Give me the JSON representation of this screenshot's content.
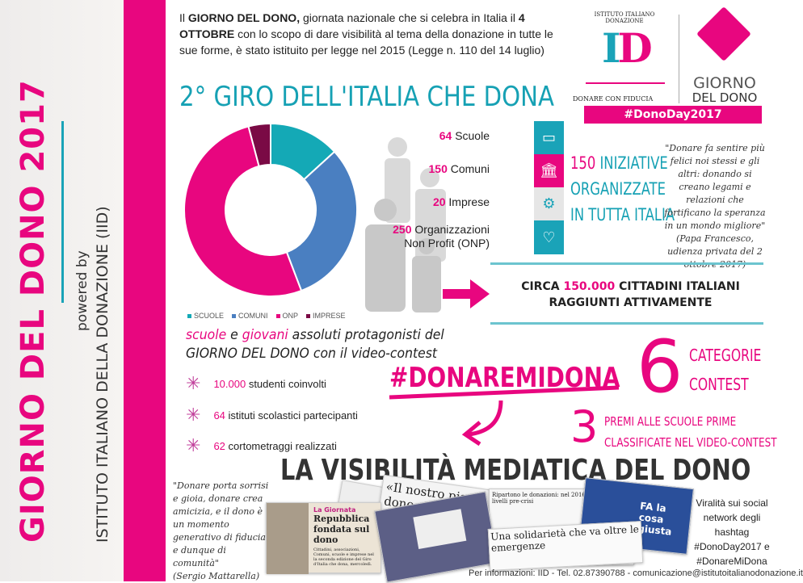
{
  "sidebar": {
    "title": "GIORNO DEL DONO 2017",
    "powered_by": "powered by",
    "institute": "ISTITUTO ITALIANO DELLA DONAZIONE (IID)"
  },
  "intro": {
    "p1": "Il ",
    "b1": "GIORNO DEL DONO,",
    "p2": " giornata nazionale che si celebra in Italia il ",
    "b2": "4 OTTOBRE",
    "p3": " con lo scopo di dare visibilità al tema della donazione in tutte le sue forme, è stato istituito per legge nel 2015 (Legge n. 110 del 14 luglio)"
  },
  "logo": {
    "arc_text": "ISTITUTO ITALIANO DONAZIONE",
    "mark": "ID",
    "tagline": "DONARE CON FIDUCIA",
    "giorno": "GIORNO",
    "del_dono": "DEL DONO",
    "hashtag": "#DonoDay2017"
  },
  "heading": "2° GIRO DELL'ITALIA CHE DONA",
  "chart_data": {
    "type": "pie",
    "donut": true,
    "categories": [
      "SCUOLE",
      "COMUNI",
      "ONP",
      "IMPRESE"
    ],
    "values": [
      64,
      150,
      250,
      20
    ],
    "colors": [
      "#14a9b6",
      "#4a7fc1",
      "#e8067f",
      "#7a0a45"
    ],
    "legend": "bottom"
  },
  "counts": [
    {
      "num": "64",
      "label": "Scuole"
    },
    {
      "num": "150",
      "label": "Comuni"
    },
    {
      "num": "20",
      "label": "Imprese"
    },
    {
      "num": "250",
      "label": "Organizzazioni",
      "label2": "Non Profit (ONP)"
    }
  ],
  "tiles": [
    {
      "icon": "book-icon",
      "color": "#1aa3b8"
    },
    {
      "icon": "bank-icon",
      "color": "#e8067f"
    },
    {
      "icon": "gears-icon",
      "color": "#e6e6e6"
    },
    {
      "icon": "heart-icon",
      "color": "#1aa3b8"
    }
  ],
  "iniziative": {
    "num": "150",
    "l1": " INIZIATIVE",
    "l2": "ORGANIZZATE",
    "l3": "IN TUTTA ITALIA"
  },
  "quote_pope": {
    "text": "\"Donare fa sentire più felici noi stessi e gli altri: donando si creano legami e relazioni che fortificano la speranza in un mondo migliore\"",
    "source": "(Papa Francesco, udienza privata del 2 ottobre 2017)"
  },
  "citizens": {
    "pre": "CIRCA ",
    "num": "150.000",
    "post": " CITTADINI ITALIANI",
    "l2": "RAGGIUNTI ATTIVAMENTE"
  },
  "protag": {
    "w1": "scuole",
    "w2": " e ",
    "w3": "giovani",
    "w4": " assoluti protagonisti del",
    "l2a": "GIORNO DEL DONO",
    "l2b": " con il video-contest"
  },
  "stats": [
    {
      "num": "10.000",
      "label": " studenti coinvolti"
    },
    {
      "num": "64",
      "label": " istituti scolastici partecipanti"
    },
    {
      "num": "62",
      "label": " cortometraggi realizzati"
    }
  ],
  "hashtag": "#DONAREMIDONA",
  "contest": {
    "num": "6",
    "l1": "CATEGORIE",
    "l2": "CONTEST"
  },
  "prizes": {
    "num": "3",
    "l1": "PREMI ALLE SCUOLE PRIME",
    "l2": "CLASSIFICATE NEL VIDEO-CONTEST"
  },
  "media_title": "LA VISIBILITÀ MEDIATICA DEL DONO",
  "quote_mattarella": {
    "text": "\"Donare porta sorrisi e gioia, donare crea amicizia, e il dono è un momento generativo di fiducia, e dunque di comunità\"",
    "source": "(Sergio Mattarella)"
  },
  "clips": {
    "giornata_kicker": "La Giornata",
    "giornata_head": "Repubblica fondata sul dono",
    "giornata_body": "Cittadini, associazioni, Comuni, scuole e imprese nel la seconda edizione del Giro d'Italia che dona, mercoledì.",
    "piano": "«Il nostro piano dono ricevuto da co…",
    "ripartono": "Ripartono le donazioni: nel 2016 tornate ai livelli pre-crisi",
    "solidarieta": "Una solidarietà che va oltre le emergenze",
    "fa": "FA la cosa giusta"
  },
  "viral": "Viralità sui social network degli hashtag #DonoDay2017 e #DonareMiDona",
  "footer": "Per informazioni: IID - Tel. 02.87390788 - comunicazione@istitutoitalianodonazione.it"
}
